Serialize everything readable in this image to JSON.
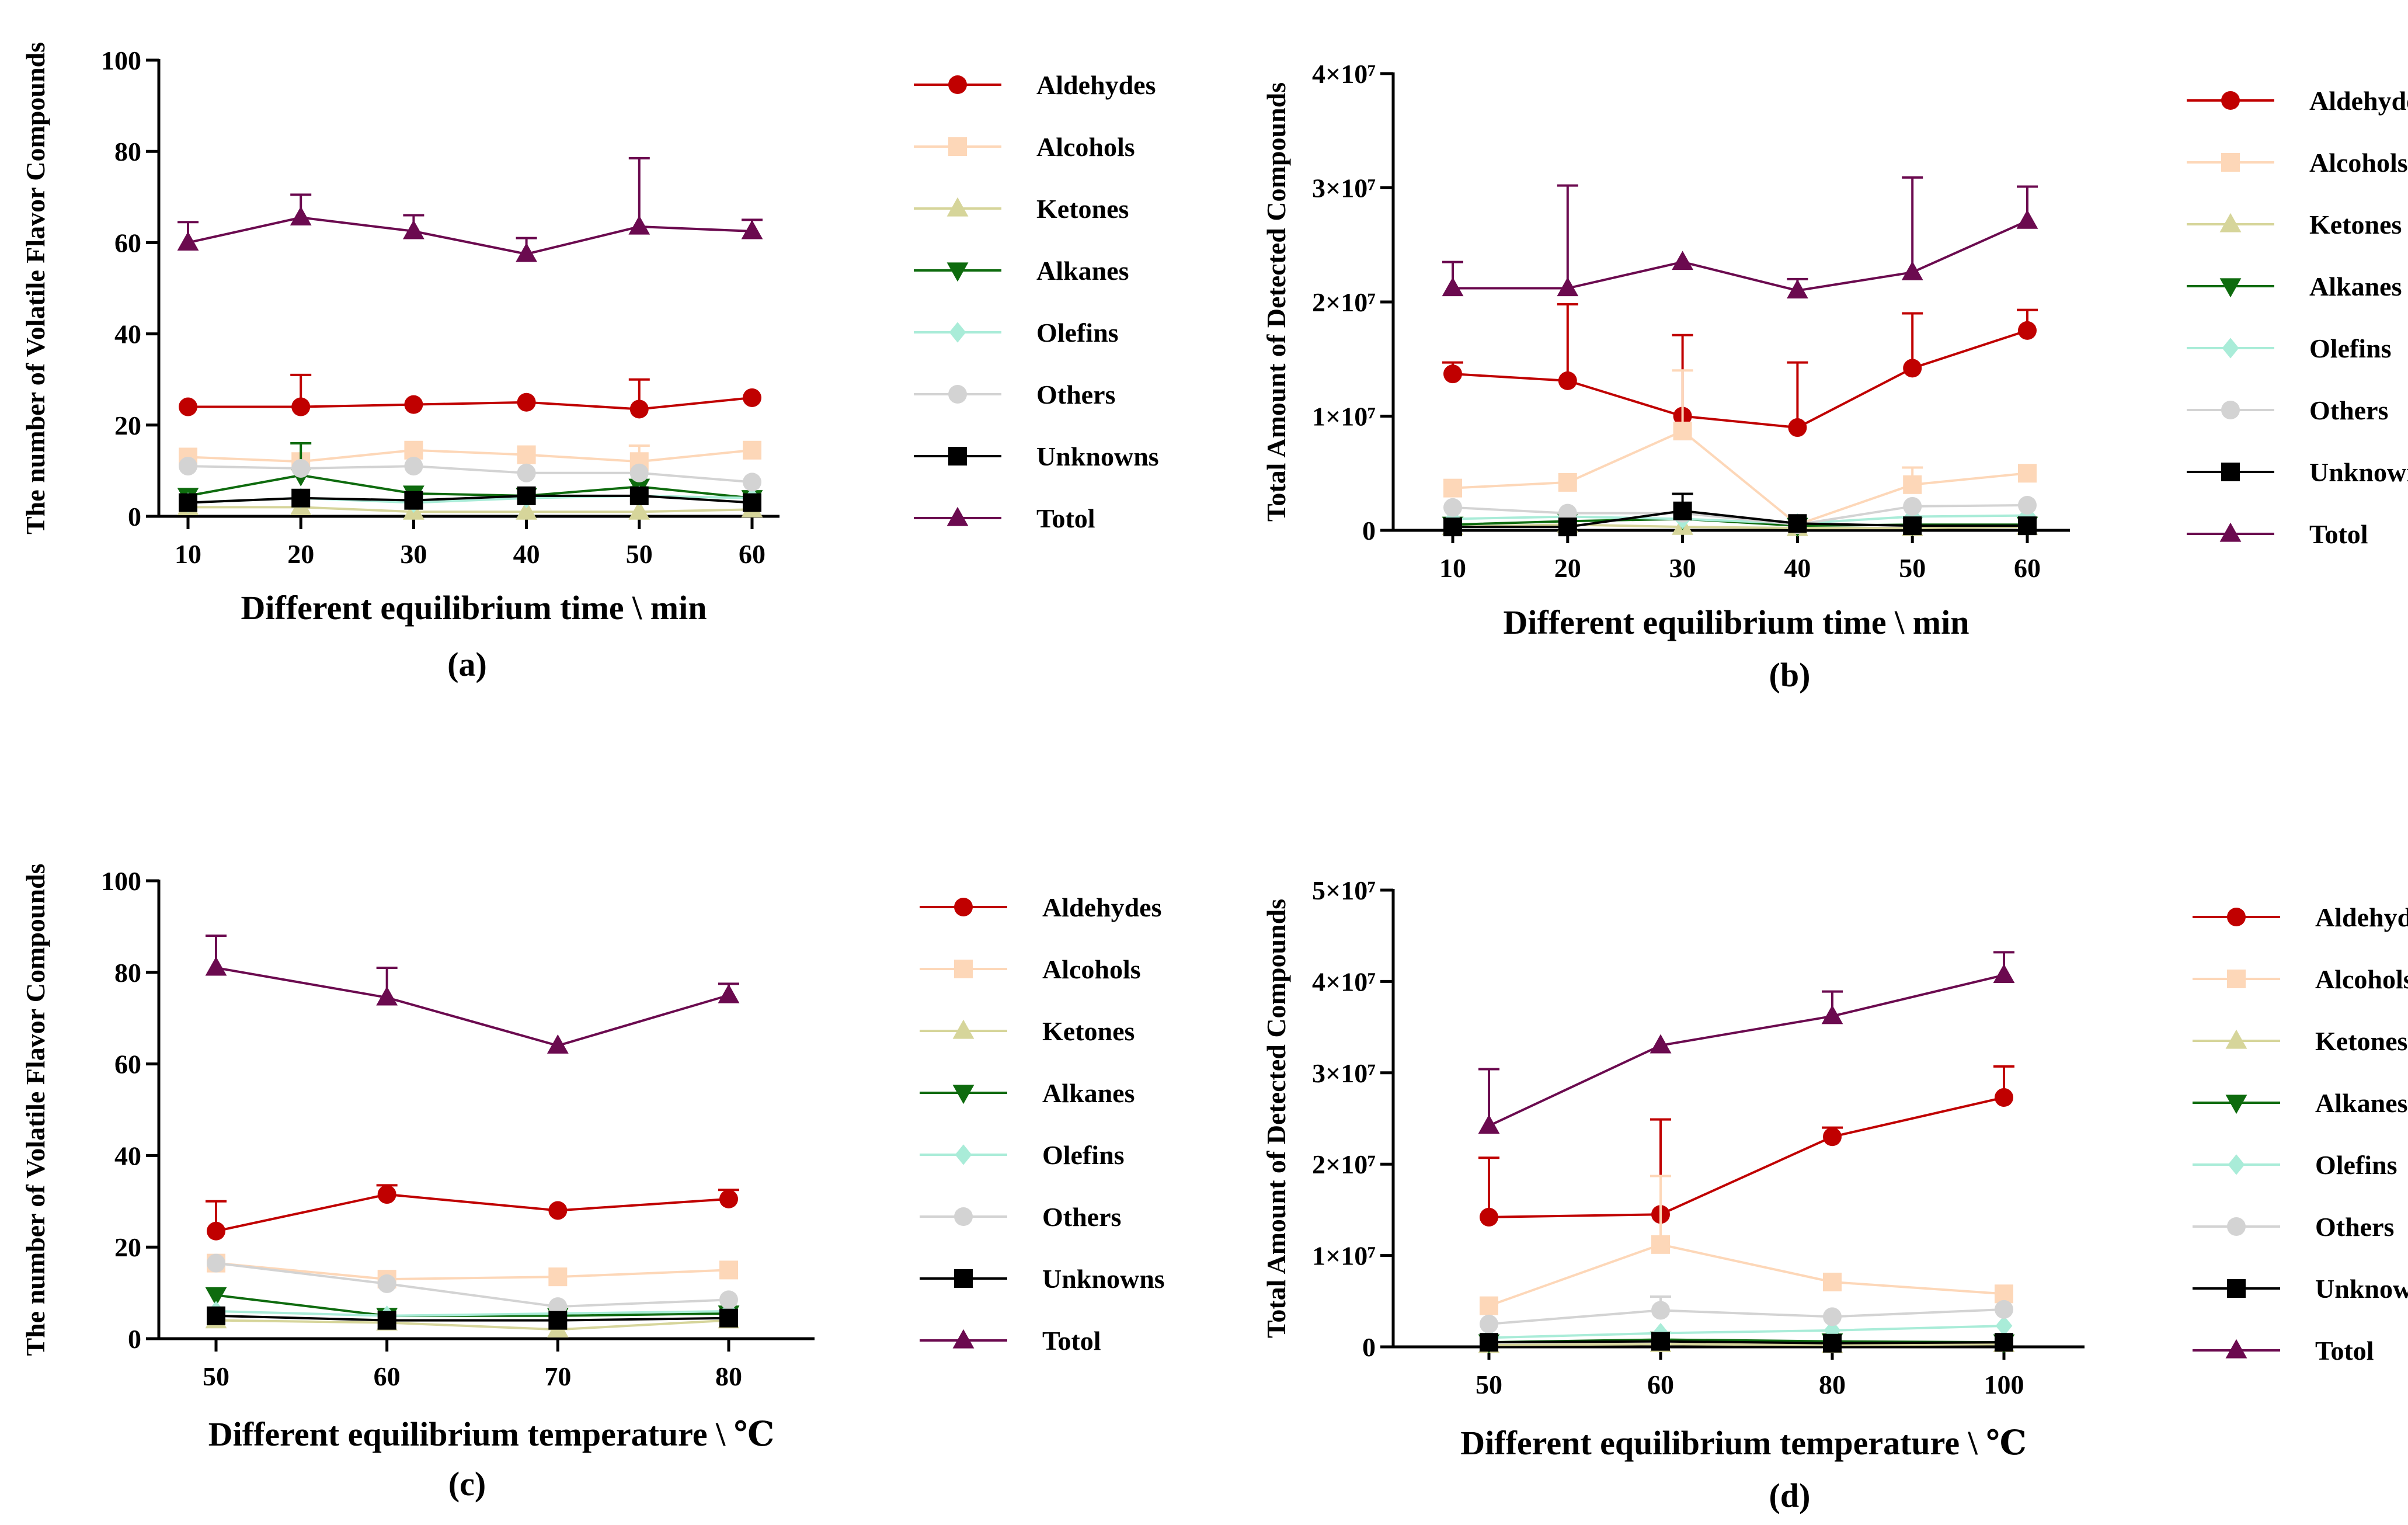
{
  "series_styles": [
    {
      "name": "Aldehydes",
      "color": "#c00000",
      "marker": "circle"
    },
    {
      "name": "Alcohols",
      "color": "#fdd7b8",
      "marker": "square"
    },
    {
      "name": "Ketones",
      "color": "#d6d59a",
      "marker": "triangle-up"
    },
    {
      "name": "Alkanes",
      "color": "#0e6b0e",
      "marker": "triangle-down"
    },
    {
      "name": "Olefins",
      "color": "#a9ecd8",
      "marker": "diamond"
    },
    {
      "name": "Others",
      "color": "#d3d3d3",
      "marker": "circle"
    },
    {
      "name": "Unknowns",
      "color": "#000000",
      "marker": "square"
    },
    {
      "name": "Totol",
      "color": "#6b0a4f",
      "marker": "triangle-up"
    }
  ],
  "chart_data": [
    {
      "type": "line",
      "panel": "(a)",
      "xlabel": "Different equilibrium time \\ min",
      "ylabel": "The number of Volatile Flavor Compounds",
      "categories": [
        "10",
        "20",
        "30",
        "40",
        "50",
        "60"
      ],
      "y_ticks": [
        {
          "value": 0,
          "label": "0"
        },
        {
          "value": 20,
          "label": "20"
        },
        {
          "value": 40,
          "label": "40"
        },
        {
          "value": 60,
          "label": "60"
        },
        {
          "value": 80,
          "label": "80"
        },
        {
          "value": 100,
          "label": "100"
        }
      ],
      "ylim": [
        0,
        100
      ],
      "grid": false,
      "legend": "right",
      "series": [
        {
          "name": "Aldehydes",
          "values": [
            24,
            24,
            24.5,
            25,
            23.5,
            26
          ],
          "error": [
            0,
            7,
            0,
            0,
            6.5,
            0
          ]
        },
        {
          "name": "Alcohols",
          "values": [
            13,
            12,
            14.5,
            13.5,
            12,
            14.5
          ],
          "error": [
            0,
            0,
            0,
            0,
            3.5,
            0
          ]
        },
        {
          "name": "Ketones",
          "values": [
            2,
            2,
            1,
            1,
            1,
            1.5
          ],
          "error": [
            0,
            0,
            0,
            0,
            0,
            0
          ]
        },
        {
          "name": "Alkanes",
          "values": [
            4.5,
            9,
            5,
            4.5,
            6.5,
            4
          ],
          "error": [
            0,
            7,
            0,
            0,
            0,
            0
          ]
        },
        {
          "name": "Olefins",
          "values": [
            3,
            4,
            3,
            4,
            4.5,
            4
          ],
          "error": [
            0,
            0,
            0,
            0,
            0,
            0
          ]
        },
        {
          "name": "Others",
          "values": [
            11,
            10.5,
            11,
            9.5,
            9.5,
            7.5
          ],
          "error": [
            0,
            0,
            0,
            0,
            0,
            0
          ]
        },
        {
          "name": "Unknowns",
          "values": [
            3,
            4,
            3.5,
            4.5,
            4.5,
            3
          ],
          "error": [
            0,
            0,
            0,
            0,
            0,
            0
          ]
        },
        {
          "name": "Totol",
          "values": [
            60,
            65.5,
            62.5,
            57.5,
            63.5,
            62.5
          ],
          "error": [
            4.5,
            5,
            3.5,
            3.5,
            15,
            2.5
          ]
        }
      ]
    },
    {
      "type": "line",
      "panel": "(b)",
      "xlabel": "Different equilibrium time \\ min",
      "ylabel": "Total Amount of Detected Compounds",
      "categories": [
        "10",
        "20",
        "30",
        "40",
        "50",
        "60"
      ],
      "y_ticks": [
        {
          "value": 0,
          "label": "0"
        },
        {
          "value": 10000000,
          "label": "1×10⁷"
        },
        {
          "value": 20000000,
          "label": "2×10⁷"
        },
        {
          "value": 30000000,
          "label": "3×10⁷"
        },
        {
          "value": 40000000,
          "label": "4×10⁷"
        }
      ],
      "ylim": [
        0,
        40000000
      ],
      "grid": false,
      "legend": "right",
      "series": [
        {
          "name": "Aldehydes",
          "values": [
            13700000,
            13100000,
            10000000,
            9000000,
            14200000,
            17500000
          ],
          "error": [
            1000000,
            6700000,
            7100000,
            5700000,
            4800000,
            1800000
          ]
        },
        {
          "name": "Alcohols",
          "values": [
            3700000,
            4200000,
            8700000,
            500000,
            4000000,
            5000000
          ],
          "error": [
            0,
            0,
            5300000,
            0,
            1500000,
            0
          ]
        },
        {
          "name": "Ketones",
          "values": [
            300000,
            500000,
            300000,
            200000,
            200000,
            300000
          ],
          "error": [
            0,
            0,
            0,
            0,
            0,
            0
          ]
        },
        {
          "name": "Alkanes",
          "values": [
            500000,
            800000,
            1000000,
            400000,
            500000,
            500000
          ],
          "error": [
            0,
            0,
            0,
            0,
            0,
            0
          ]
        },
        {
          "name": "Olefins",
          "values": [
            1000000,
            1200000,
            1000000,
            600000,
            1200000,
            1300000
          ],
          "error": [
            0,
            0,
            0,
            0,
            0,
            0
          ]
        },
        {
          "name": "Others",
          "values": [
            2000000,
            1500000,
            1500000,
            500000,
            2100000,
            2200000
          ],
          "error": [
            0,
            0,
            0,
            0,
            0,
            0
          ]
        },
        {
          "name": "Unknowns",
          "values": [
            300000,
            300000,
            1700000,
            600000,
            400000,
            400000
          ],
          "error": [
            0,
            0,
            1500000,
            0,
            0,
            0
          ]
        },
        {
          "name": "Totol",
          "values": [
            21200000,
            21200000,
            23500000,
            21000000,
            22600000,
            27100000
          ],
          "error": [
            2300000,
            9000000,
            0,
            1000000,
            8300000,
            3000000
          ]
        }
      ]
    },
    {
      "type": "line",
      "panel": "(c)",
      "xlabel": "Different equilibrium temperature \\ ℃",
      "ylabel": "The number of Volatile Flavor Compounds",
      "categories": [
        "50",
        "60",
        "70",
        "80"
      ],
      "y_ticks": [
        {
          "value": 0,
          "label": "0"
        },
        {
          "value": 20,
          "label": "20"
        },
        {
          "value": 40,
          "label": "40"
        },
        {
          "value": 60,
          "label": "60"
        },
        {
          "value": 80,
          "label": "80"
        },
        {
          "value": 100,
          "label": "100"
        }
      ],
      "ylim": [
        0,
        100
      ],
      "grid": false,
      "legend": "right",
      "series": [
        {
          "name": "Aldehydes",
          "values": [
            23.5,
            31.5,
            28,
            30.5
          ],
          "error": [
            6.5,
            2,
            0,
            2
          ]
        },
        {
          "name": "Alcohols",
          "values": [
            16.5,
            13,
            13.5,
            15
          ],
          "error": [
            0,
            0,
            0,
            0
          ]
        },
        {
          "name": "Ketones",
          "values": [
            4,
            3.5,
            2,
            4
          ],
          "error": [
            0,
            0,
            0,
            0
          ]
        },
        {
          "name": "Alkanes",
          "values": [
            9.5,
            5,
            5,
            5.5
          ],
          "error": [
            0,
            0,
            0,
            0
          ]
        },
        {
          "name": "Olefins",
          "values": [
            6,
            5,
            5.5,
            6
          ],
          "error": [
            0,
            0,
            0,
            0
          ]
        },
        {
          "name": "Others",
          "values": [
            16.5,
            12,
            7,
            8.5
          ],
          "error": [
            0,
            0,
            0,
            0
          ]
        },
        {
          "name": "Unknowns",
          "values": [
            5,
            4,
            4,
            4.5
          ],
          "error": [
            0,
            0,
            0,
            0
          ]
        },
        {
          "name": "Totol",
          "values": [
            81,
            74.5,
            64,
            75
          ],
          "error": [
            7,
            6.5,
            0,
            2.5
          ]
        }
      ]
    },
    {
      "type": "line",
      "panel": "(d)",
      "xlabel": "Different equilibrium temperature \\ ℃",
      "ylabel": "Total Amount of Detected Compounds",
      "categories": [
        "50",
        "60",
        "80",
        "100"
      ],
      "y_ticks": [
        {
          "value": 0,
          "label": "0"
        },
        {
          "value": 10000000,
          "label": "1×10⁷"
        },
        {
          "value": 20000000,
          "label": "2×10⁷"
        },
        {
          "value": 30000000,
          "label": "3×10⁷"
        },
        {
          "value": 40000000,
          "label": "4×10⁷"
        },
        {
          "value": 50000000,
          "label": "5×10⁷"
        }
      ],
      "ylim": [
        0,
        50000000
      ],
      "grid": false,
      "legend": "right",
      "series": [
        {
          "name": "Aldehydes",
          "values": [
            14200000,
            14500000,
            23000000,
            27300000
          ],
          "error": [
            6500000,
            10400000,
            1000000,
            3400000
          ]
        },
        {
          "name": "Alcohols",
          "values": [
            4500000,
            11200000,
            7100000,
            5800000
          ],
          "error": [
            0,
            7500000,
            0,
            0
          ]
        },
        {
          "name": "Ketones",
          "values": [
            200000,
            300000,
            200000,
            300000
          ],
          "error": [
            0,
            0,
            0,
            0
          ]
        },
        {
          "name": "Alkanes",
          "values": [
            500000,
            800000,
            600000,
            500000
          ],
          "error": [
            0,
            0,
            0,
            0
          ]
        },
        {
          "name": "Olefins",
          "values": [
            1000000,
            1500000,
            1800000,
            2300000
          ],
          "error": [
            0,
            0,
            0,
            0
          ]
        },
        {
          "name": "Others",
          "values": [
            2500000,
            4000000,
            3300000,
            4100000
          ],
          "error": [
            0,
            1500000,
            0,
            0
          ]
        },
        {
          "name": "Unknowns",
          "values": [
            500000,
            600000,
            400000,
            500000
          ],
          "error": [
            0,
            0,
            0,
            0
          ]
        },
        {
          "name": "Totol",
          "values": [
            24200000,
            33000000,
            36200000,
            40700000
          ],
          "error": [
            6200000,
            0,
            2700000,
            2500000
          ]
        }
      ]
    }
  ]
}
